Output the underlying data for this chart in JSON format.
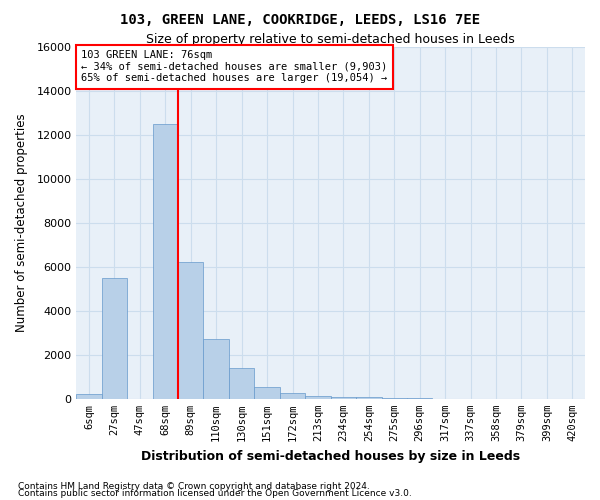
{
  "title1": "103, GREEN LANE, COOKRIDGE, LEEDS, LS16 7EE",
  "title2": "Size of property relative to semi-detached houses in Leeds",
  "xlabel": "Distribution of semi-detached houses by size in Leeds",
  "ylabel": "Number of semi-detached properties",
  "footnote1": "Contains HM Land Registry data © Crown copyright and database right 2024.",
  "footnote2": "Contains public sector information licensed under the Open Government Licence v3.0.",
  "bar_labels": [
    "6sqm",
    "27sqm",
    "47sqm",
    "68sqm",
    "89sqm",
    "110sqm",
    "130sqm",
    "151sqm",
    "172sqm",
    "213sqm",
    "234sqm",
    "254sqm",
    "275sqm",
    "296sqm",
    "317sqm",
    "337sqm",
    "358sqm",
    "379sqm",
    "399sqm",
    "420sqm"
  ],
  "bar_values": [
    200,
    5500,
    0,
    12500,
    6200,
    2700,
    1400,
    550,
    250,
    130,
    80,
    60,
    30,
    20,
    10,
    5,
    5,
    2,
    2,
    1
  ],
  "bar_color": "#b8d0e8",
  "bar_edgecolor": "#6699cc",
  "grid_color": "#ccdded",
  "background_color": "#e8f0f8",
  "vline_color": "red",
  "vline_position": 3.5,
  "annotation_text": "103 GREEN LANE: 76sqm\n← 34% of semi-detached houses are smaller (9,903)\n65% of semi-detached houses are larger (19,054) →",
  "annotation_box_facecolor": "white",
  "annotation_box_edgecolor": "red",
  "ylim": [
    0,
    16000
  ],
  "yticks": [
    0,
    2000,
    4000,
    6000,
    8000,
    10000,
    12000,
    14000,
    16000
  ]
}
